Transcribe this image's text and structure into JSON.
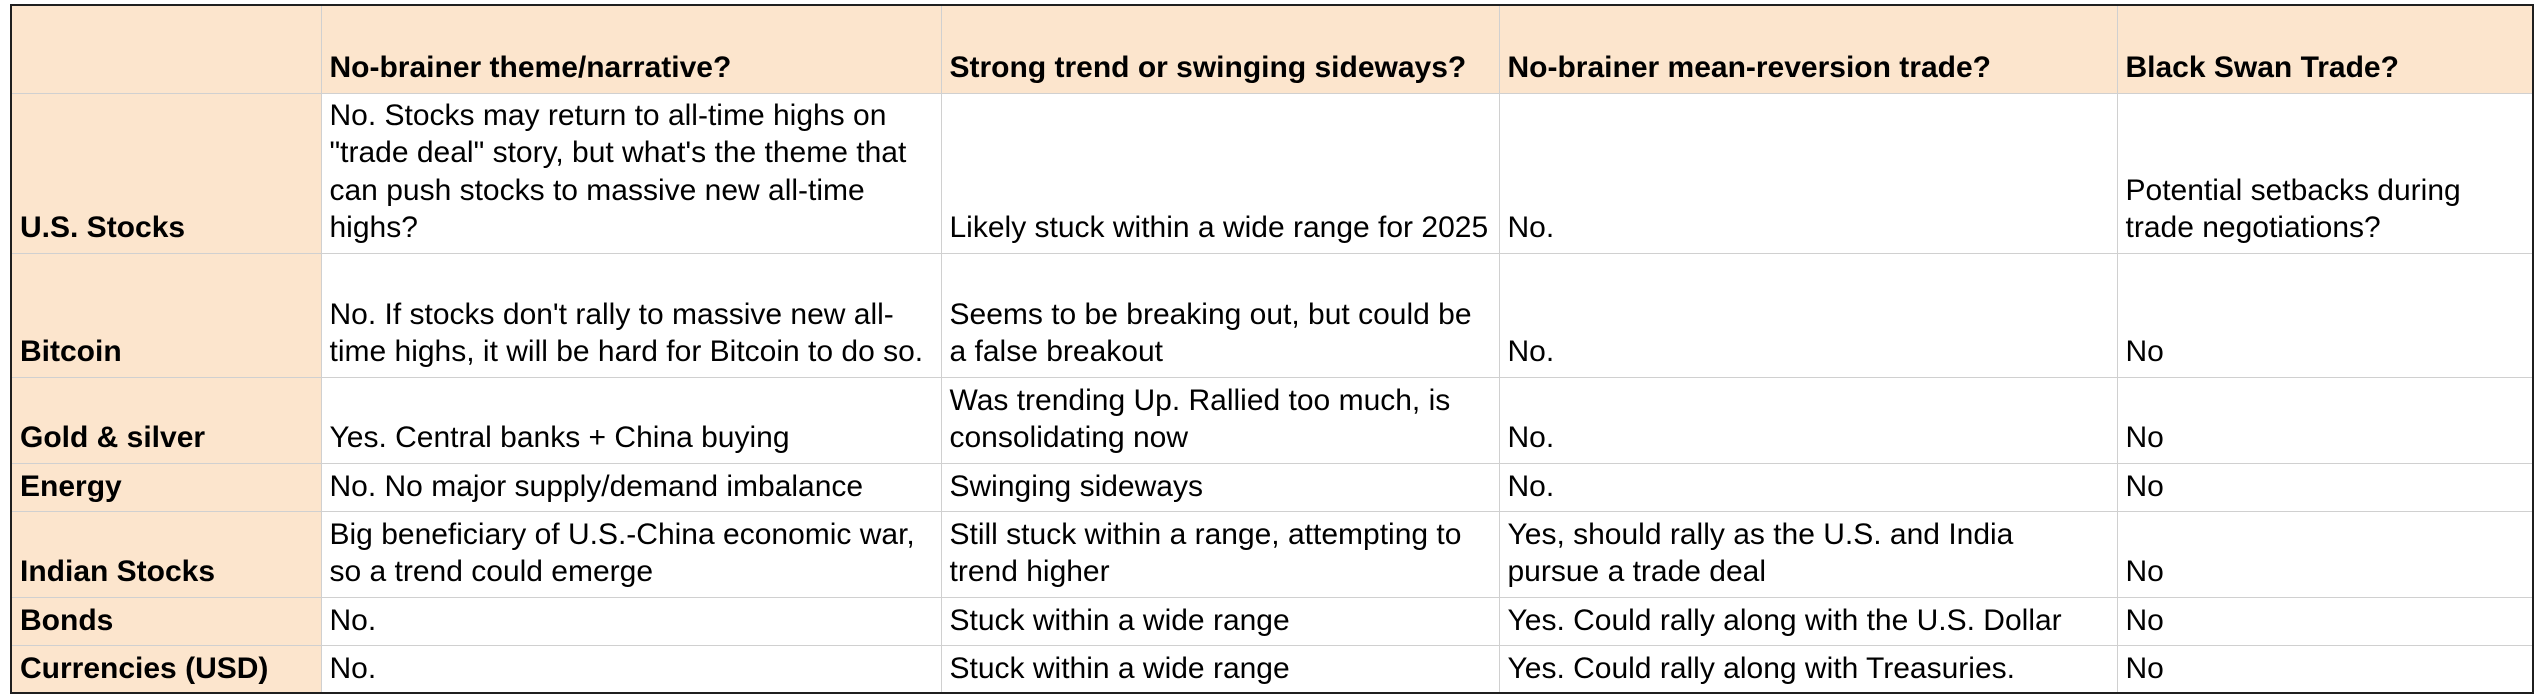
{
  "table": {
    "headers": [
      "",
      "No-brainer theme/narrative?",
      "Strong trend or swinging sideways?",
      "No-brainer mean-reversion trade?",
      "Black Swan Trade?"
    ],
    "rows": [
      {
        "label": "U.S. Stocks",
        "cells": [
          "No. Stocks may return to all-time highs on \"trade deal\" story, but what's the theme that can push stocks to massive new all-time highs?",
          "Likely stuck within a wide range for 2025",
          "No.",
          "Potential setbacks during trade negotiations?"
        ]
      },
      {
        "label": "Bitcoin",
        "cells": [
          "No. If stocks don't rally to massive new all-time highs, it will be hard for Bitcoin to do so.",
          "Seems to be breaking out, but could be a false breakout",
          "No.",
          "No"
        ]
      },
      {
        "label": "Gold & silver",
        "cells": [
          "Yes. Central banks + China buying",
          "Was trending Up. Rallied too much, is consolidating now",
          "No.",
          "No"
        ]
      },
      {
        "label": "Energy",
        "cells": [
          "No. No major supply/demand imbalance",
          "Swinging sideways",
          "No.",
          "No"
        ]
      },
      {
        "label": "Indian Stocks",
        "cells": [
          "Big beneficiary of U.S.-China economic war, so a trend could emerge",
          "Still stuck within a range, attempting to trend higher",
          "Yes, should rally as the U.S. and India pursue a trade deal",
          "No"
        ]
      },
      {
        "label": "Bonds",
        "cells": [
          "No.",
          "Stuck within a wide range",
          "Yes. Could rally along with the U.S. Dollar",
          "No"
        ]
      },
      {
        "label": "Currencies (USD)",
        "cells": [
          "No.",
          "Stuck within a wide range",
          "Yes. Could rally along with Treasuries.",
          "No"
        ]
      }
    ]
  },
  "colors": {
    "header_fill": "#fce5cd",
    "grid_line": "#d0d0d0",
    "outer_border": "#1f1f1f"
  }
}
